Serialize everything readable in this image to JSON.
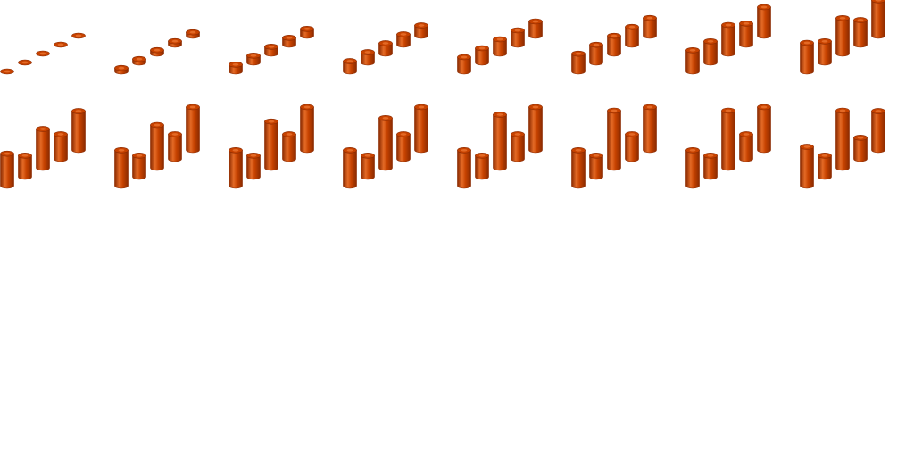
{
  "sprite_sheet": {
    "background": "#ffffff",
    "columns": 8,
    "bar_color": "#c64200",
    "bar_dark": "#8a2a00",
    "bar_light": "#e46a26",
    "frames": [
      {
        "levels": [
          0.0,
          0.0,
          0.0,
          0.0,
          0.0
        ]
      },
      {
        "levels": [
          0.06,
          0.06,
          0.06,
          0.06,
          0.06
        ]
      },
      {
        "levels": [
          0.12,
          0.12,
          0.12,
          0.12,
          0.12
        ]
      },
      {
        "levels": [
          0.18,
          0.18,
          0.18,
          0.18,
          0.18
        ]
      },
      {
        "levels": [
          0.25,
          0.25,
          0.25,
          0.25,
          0.25
        ]
      },
      {
        "levels": [
          0.31,
          0.31,
          0.31,
          0.31,
          0.31
        ]
      },
      {
        "levels": [
          0.37,
          0.37,
          0.5,
          0.37,
          0.5
        ]
      },
      {
        "levels": [
          0.5,
          0.37,
          0.62,
          0.43,
          0.62
        ]
      },
      {
        "levels": [
          0.56,
          0.37,
          0.68,
          0.43,
          0.68
        ]
      },
      {
        "levels": [
          0.62,
          0.37,
          0.75,
          0.43,
          0.75
        ]
      },
      {
        "levels": [
          0.62,
          0.37,
          0.81,
          0.43,
          0.75
        ]
      },
      {
        "levels": [
          0.62,
          0.37,
          0.87,
          0.43,
          0.75
        ]
      },
      {
        "levels": [
          0.62,
          0.37,
          0.93,
          0.43,
          0.75
        ]
      },
      {
        "levels": [
          0.62,
          0.37,
          1.0,
          0.43,
          0.75
        ]
      },
      {
        "levels": [
          0.62,
          0.37,
          1.0,
          0.43,
          0.75
        ]
      },
      {
        "levels": [
          0.68,
          0.37,
          1.0,
          0.37,
          0.68
        ]
      }
    ]
  }
}
